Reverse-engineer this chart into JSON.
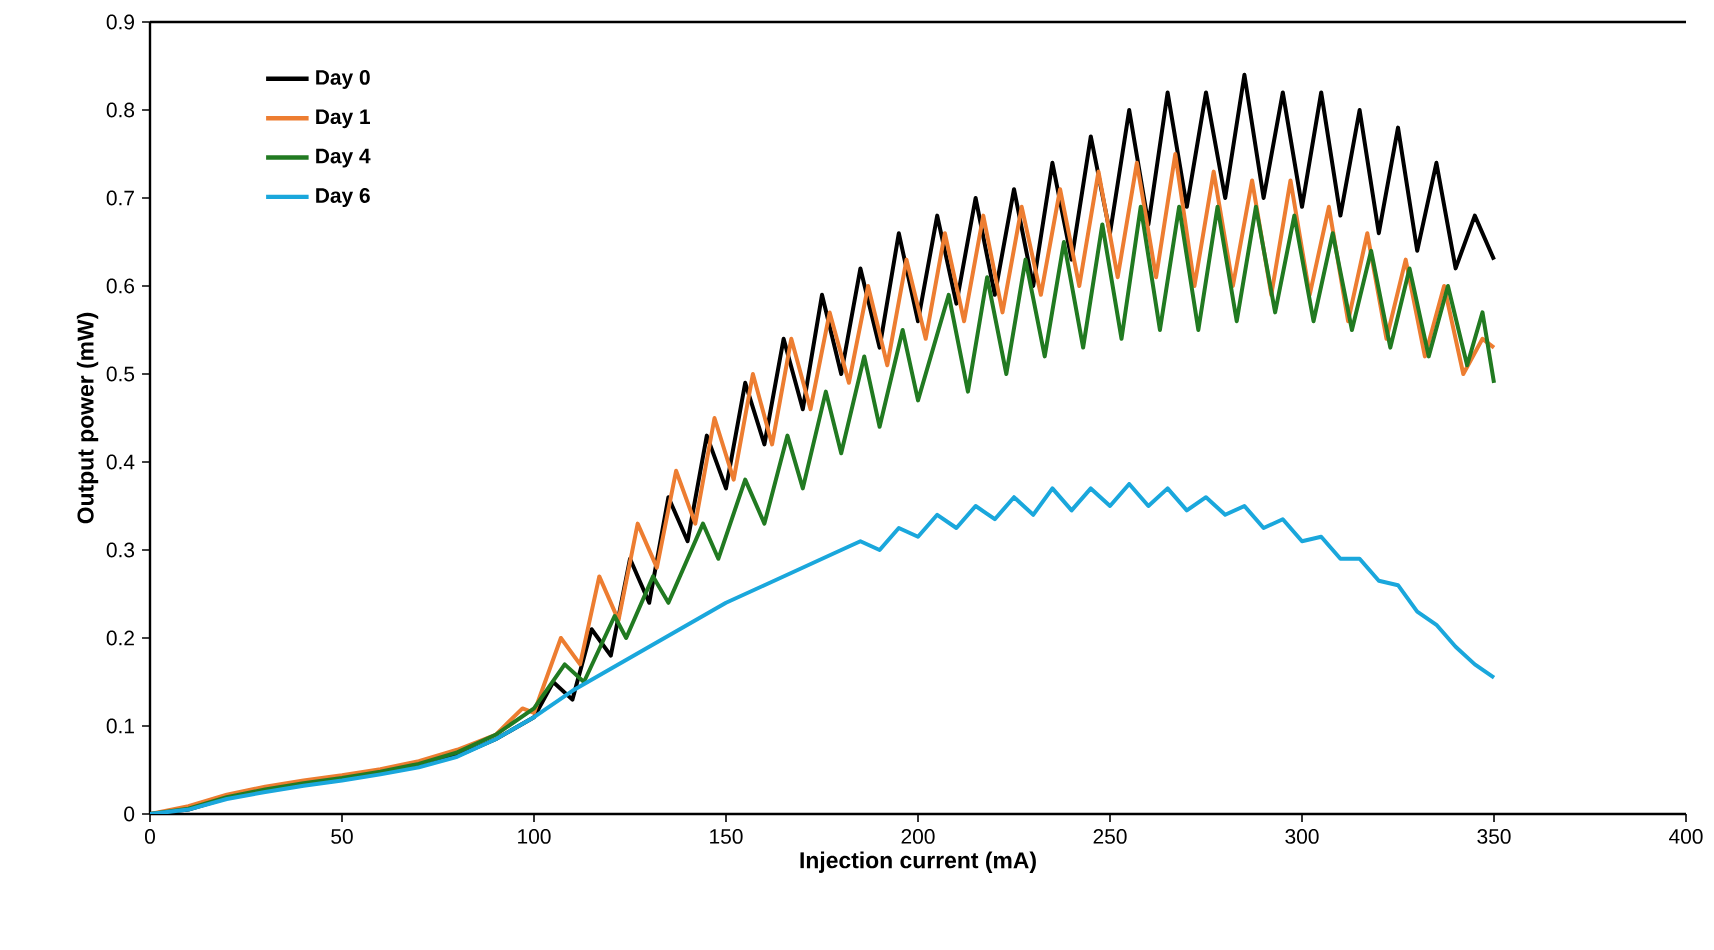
{
  "chart_data": {
    "type": "line",
    "xlabel": "Injection current (mA)",
    "ylabel": "Output power (mW)",
    "xlim": [
      0,
      400
    ],
    "xticks": [
      0,
      50,
      100,
      150,
      200,
      250,
      300,
      350,
      400
    ],
    "ylim": [
      0,
      0.9
    ],
    "yticks": [
      0,
      0.1,
      0.2,
      0.3,
      0.4,
      0.5,
      0.6,
      0.7,
      0.8,
      0.9
    ],
    "grid": false,
    "legend": "top left",
    "marker": "none",
    "line_style": "solid",
    "series": [
      {
        "name": "Day 0",
        "color": "#000000",
        "x": [
          0,
          10,
          20,
          30,
          40,
          50,
          60,
          70,
          80,
          90,
          100,
          105,
          110,
          115,
          120,
          125,
          130,
          135,
          140,
          145,
          150,
          155,
          160,
          165,
          170,
          175,
          180,
          185,
          190,
          195,
          200,
          205,
          210,
          215,
          220,
          225,
          230,
          235,
          240,
          245,
          250,
          255,
          260,
          265,
          270,
          275,
          280,
          285,
          290,
          295,
          300,
          305,
          310,
          315,
          320,
          325,
          330,
          335,
          340,
          345,
          350
        ],
        "values": [
          0,
          0.005,
          0.018,
          0.027,
          0.034,
          0.04,
          0.047,
          0.055,
          0.066,
          0.085,
          0.11,
          0.15,
          0.13,
          0.21,
          0.18,
          0.29,
          0.24,
          0.36,
          0.31,
          0.43,
          0.37,
          0.49,
          0.42,
          0.54,
          0.46,
          0.59,
          0.5,
          0.62,
          0.53,
          0.66,
          0.56,
          0.68,
          0.58,
          0.7,
          0.59,
          0.71,
          0.6,
          0.74,
          0.63,
          0.77,
          0.66,
          0.8,
          0.67,
          0.82,
          0.69,
          0.82,
          0.7,
          0.84,
          0.7,
          0.82,
          0.69,
          0.82,
          0.68,
          0.8,
          0.66,
          0.78,
          0.64,
          0.74,
          0.62,
          0.68,
          0.63
        ]
      },
      {
        "name": "Day 1",
        "color": "#ed7d31",
        "x": [
          0,
          10,
          20,
          30,
          40,
          50,
          60,
          70,
          80,
          90,
          97,
          100,
          107,
          112,
          117,
          122,
          127,
          132,
          137,
          142,
          147,
          152,
          157,
          162,
          167,
          172,
          177,
          182,
          187,
          192,
          197,
          202,
          207,
          212,
          217,
          222,
          227,
          232,
          237,
          242,
          247,
          252,
          257,
          262,
          267,
          272,
          277,
          282,
          287,
          292,
          297,
          302,
          307,
          312,
          317,
          322,
          327,
          332,
          337,
          342,
          347,
          350
        ],
        "values": [
          0,
          0.009,
          0.022,
          0.031,
          0.038,
          0.044,
          0.051,
          0.06,
          0.073,
          0.09,
          0.12,
          0.115,
          0.2,
          0.17,
          0.27,
          0.22,
          0.33,
          0.28,
          0.39,
          0.33,
          0.45,
          0.38,
          0.5,
          0.42,
          0.54,
          0.46,
          0.57,
          0.49,
          0.6,
          0.51,
          0.63,
          0.54,
          0.66,
          0.56,
          0.68,
          0.57,
          0.69,
          0.59,
          0.71,
          0.6,
          0.73,
          0.61,
          0.74,
          0.61,
          0.75,
          0.6,
          0.73,
          0.6,
          0.72,
          0.59,
          0.72,
          0.59,
          0.69,
          0.56,
          0.66,
          0.54,
          0.63,
          0.52,
          0.6,
          0.5,
          0.54,
          0.53
        ]
      },
      {
        "name": "Day 4",
        "color": "#217a21",
        "x": [
          0,
          10,
          20,
          30,
          40,
          50,
          60,
          70,
          80,
          90,
          100,
          108,
          113,
          121,
          124,
          131,
          135,
          144,
          148,
          155,
          160,
          166,
          170,
          176,
          180,
          186,
          190,
          196,
          200,
          208,
          213,
          218,
          223,
          228,
          233,
          238,
          243,
          248,
          253,
          258,
          263,
          268,
          273,
          278,
          283,
          288,
          293,
          298,
          303,
          308,
          313,
          318,
          323,
          328,
          333,
          338,
          343,
          347,
          350
        ],
        "values": [
          0,
          0.006,
          0.019,
          0.028,
          0.035,
          0.041,
          0.048,
          0.057,
          0.07,
          0.09,
          0.12,
          0.17,
          0.15,
          0.225,
          0.2,
          0.27,
          0.24,
          0.33,
          0.29,
          0.38,
          0.33,
          0.43,
          0.37,
          0.48,
          0.41,
          0.52,
          0.44,
          0.55,
          0.47,
          0.59,
          0.48,
          0.61,
          0.5,
          0.63,
          0.52,
          0.65,
          0.53,
          0.67,
          0.54,
          0.69,
          0.55,
          0.69,
          0.55,
          0.69,
          0.56,
          0.69,
          0.57,
          0.68,
          0.56,
          0.66,
          0.55,
          0.64,
          0.53,
          0.62,
          0.52,
          0.6,
          0.51,
          0.57,
          0.49
        ]
      },
      {
        "name": "Day 6",
        "color": "#1aa7dc",
        "x": [
          0,
          10,
          20,
          30,
          40,
          50,
          60,
          70,
          80,
          90,
          100,
          110,
          120,
          130,
          140,
          150,
          160,
          170,
          180,
          185,
          190,
          195,
          200,
          205,
          210,
          215,
          220,
          225,
          230,
          235,
          240,
          245,
          250,
          255,
          260,
          265,
          270,
          275,
          280,
          285,
          290,
          295,
          300,
          305,
          310,
          315,
          320,
          325,
          330,
          335,
          340,
          345,
          350
        ],
        "values": [
          0,
          0.005,
          0.017,
          0.025,
          0.032,
          0.038,
          0.045,
          0.053,
          0.065,
          0.085,
          0.11,
          0.14,
          0.165,
          0.19,
          0.215,
          0.24,
          0.26,
          0.28,
          0.3,
          0.31,
          0.3,
          0.325,
          0.315,
          0.34,
          0.325,
          0.35,
          0.335,
          0.36,
          0.34,
          0.37,
          0.345,
          0.37,
          0.35,
          0.375,
          0.35,
          0.37,
          0.345,
          0.36,
          0.34,
          0.35,
          0.325,
          0.335,
          0.31,
          0.315,
          0.29,
          0.29,
          0.265,
          0.26,
          0.23,
          0.215,
          0.19,
          0.17,
          0.155
        ]
      }
    ]
  }
}
